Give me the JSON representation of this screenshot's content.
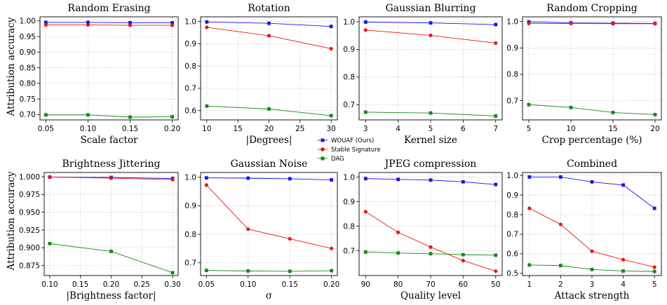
{
  "figure": {
    "shared_ylabel": "Attribution accuracy"
  },
  "legend": [
    {
      "name": "WOUAF (Ours)",
      "color": "#1515f0"
    },
    {
      "name": "Stable Signature",
      "color": "#ee1515"
    },
    {
      "name": "DAG",
      "color": "#128a12"
    }
  ],
  "chart_data": [
    {
      "type": "line",
      "title": "Random Erasing",
      "xlabel": "Scale factor",
      "x": [
        0.05,
        0.1,
        0.15,
        0.2
      ],
      "xticks": [
        0.05,
        0.1,
        0.15,
        0.2
      ],
      "xtick_labels": [
        "0.05",
        "0.10",
        "0.15",
        "0.20"
      ],
      "xlim": [
        0.043,
        0.207
      ],
      "yticks": [
        0.7,
        0.75,
        0.8,
        0.85,
        0.9,
        0.95,
        1.0
      ],
      "ytick_labels": [
        "0.70",
        "0.75",
        "0.80",
        "0.85",
        "0.90",
        "0.95",
        "1.00"
      ],
      "ylim": [
        0.683,
        1.013
      ],
      "series": [
        {
          "name": "WOUAF (Ours)",
          "values": [
            0.995,
            0.995,
            0.994,
            0.994
          ]
        },
        {
          "name": "Stable Signature",
          "values": [
            0.987,
            0.987,
            0.986,
            0.986
          ]
        },
        {
          "name": "DAG",
          "values": [
            0.699,
            0.699,
            0.692,
            0.693
          ]
        }
      ]
    },
    {
      "type": "line",
      "title": "Rotation",
      "xlabel": "|Degrees|",
      "x": [
        10,
        20,
        30
      ],
      "xticks": [
        10,
        15,
        20,
        25,
        30
      ],
      "xtick_labels": [
        "10",
        "15",
        "20",
        "25",
        "30"
      ],
      "xlim": [
        9,
        31
      ],
      "yticks": [
        0.6,
        0.7,
        0.8,
        0.9,
        1.0
      ],
      "ytick_labels": [
        "0.6",
        "0.7",
        "0.8",
        "0.9",
        "1.0"
      ],
      "ylim": [
        0.558,
        1.021
      ],
      "series": [
        {
          "name": "WOUAF (Ours)",
          "values": [
            0.998,
            0.992,
            0.978
          ]
        },
        {
          "name": "Stable Signature",
          "values": [
            0.974,
            0.936,
            0.878
          ]
        },
        {
          "name": "DAG",
          "values": [
            0.62,
            0.607,
            0.577
          ]
        }
      ]
    },
    {
      "type": "line",
      "title": "Gaussian Blurring",
      "xlabel": "Kernel size",
      "x": [
        3,
        5,
        7
      ],
      "xticks": [
        3,
        4,
        5,
        6,
        7
      ],
      "xtick_labels": [
        "3",
        "4",
        "5",
        "6",
        "7"
      ],
      "xlim": [
        2.8,
        7.2
      ],
      "yticks": [
        0.7,
        0.8,
        0.9,
        1.0
      ],
      "ytick_labels": [
        "0.7",
        "0.8",
        "0.9",
        "1.0"
      ],
      "ylim": [
        0.645,
        1.018
      ],
      "series": [
        {
          "name": "WOUAF (Ours)",
          "values": [
            0.999,
            0.996,
            0.99
          ]
        },
        {
          "name": "Stable Signature",
          "values": [
            0.97,
            0.951,
            0.923
          ]
        },
        {
          "name": "DAG",
          "values": [
            0.673,
            0.67,
            0.659
          ]
        }
      ]
    },
    {
      "type": "line",
      "title": "Random Cropping",
      "xlabel": "Crop percentage (%)",
      "x": [
        5,
        10,
        15,
        20
      ],
      "xticks": [
        5,
        10,
        15,
        20
      ],
      "xtick_labels": [
        "5",
        "10",
        "15",
        "20"
      ],
      "xlim": [
        4.25,
        20.75
      ],
      "yticks": [
        0.7,
        0.8,
        0.9,
        1.0
      ],
      "ytick_labels": [
        "0.7",
        "0.8",
        "0.9",
        "1.0"
      ],
      "ylim": [
        0.627,
        1.018
      ],
      "series": [
        {
          "name": "WOUAF (Ours)",
          "values": [
            0.999,
            0.995,
            0.994,
            0.993
          ]
        },
        {
          "name": "Stable Signature",
          "values": [
            0.993,
            0.993,
            0.992,
            0.992
          ]
        },
        {
          "name": "DAG",
          "values": [
            0.685,
            0.674,
            0.655,
            0.647
          ]
        }
      ]
    },
    {
      "type": "line",
      "title": "Brightness Jittering",
      "xlabel": "|Brightness factor|",
      "x": [
        0.1,
        0.2,
        0.3
      ],
      "xticks": [
        0.1,
        0.15,
        0.2,
        0.25,
        0.3
      ],
      "xtick_labels": [
        "0.10",
        "0.15",
        "0.20",
        "0.25",
        "0.30"
      ],
      "xlim": [
        0.091,
        0.309
      ],
      "yticks": [
        0.875,
        0.9,
        0.925,
        0.95,
        0.975,
        1.0
      ],
      "ytick_labels": [
        "0.875",
        "0.900",
        "0.925",
        "0.950",
        "0.975",
        "1.000"
      ],
      "ylim": [
        0.861,
        1.006
      ],
      "series": [
        {
          "name": "WOUAF (Ours)",
          "values": [
            0.9995,
            0.999,
            0.9975
          ]
        },
        {
          "name": "Stable Signature",
          "values": [
            0.9995,
            0.998,
            0.996
          ]
        },
        {
          "name": "DAG",
          "values": [
            0.906,
            0.895,
            0.865
          ]
        }
      ]
    },
    {
      "type": "line",
      "title": "Gaussian Noise",
      "xlabel": "σ",
      "x": [
        0.05,
        0.1,
        0.15,
        0.2
      ],
      "xticks": [
        0.05,
        0.1,
        0.15,
        0.2
      ],
      "xtick_labels": [
        "0.05",
        "0.10",
        "0.15",
        "0.20"
      ],
      "xlim": [
        0.043,
        0.207
      ],
      "yticks": [
        0.7,
        0.8,
        0.9,
        1.0
      ],
      "ytick_labels": [
        "0.7",
        "0.8",
        "0.9",
        "1.0"
      ],
      "ylim": [
        0.655,
        1.017
      ],
      "series": [
        {
          "name": "WOUAF (Ours)",
          "values": [
            0.998,
            0.997,
            0.995,
            0.991
          ]
        },
        {
          "name": "Stable Signature",
          "values": [
            0.973,
            0.818,
            0.784,
            0.75
          ]
        },
        {
          "name": "DAG",
          "values": [
            0.673,
            0.671,
            0.67,
            0.672
          ]
        }
      ]
    },
    {
      "type": "line",
      "title": "JPEG compression",
      "xlabel": "Quality level",
      "x": [
        90,
        80,
        70,
        60,
        50
      ],
      "xticks": [
        90,
        80,
        70,
        60,
        50
      ],
      "xtick_labels": [
        "90",
        "80",
        "70",
        "60",
        "50"
      ],
      "xlim": [
        92,
        48
      ],
      "yticks": [
        0.7,
        0.8,
        0.9,
        1.0
      ],
      "ytick_labels": [
        "0.7",
        "0.8",
        "0.9",
        "1.0"
      ],
      "ylim": [
        0.599,
        1.019
      ],
      "series": [
        {
          "name": "WOUAF (Ours)",
          "values": [
            0.994,
            0.991,
            0.988,
            0.981,
            0.97
          ]
        },
        {
          "name": "Stable Signature",
          "values": [
            0.859,
            0.775,
            0.715,
            0.66,
            0.617
          ]
        },
        {
          "name": "DAG",
          "values": [
            0.695,
            0.691,
            0.688,
            0.684,
            0.682
          ]
        }
      ]
    },
    {
      "type": "line",
      "title": "Combined",
      "xlabel": "Attack strength",
      "x": [
        1,
        2,
        3,
        4,
        5
      ],
      "xticks": [
        1,
        2,
        3,
        4,
        5
      ],
      "xtick_labels": [
        "1",
        "2",
        "3",
        "4",
        "5"
      ],
      "xlim": [
        0.78,
        5.22
      ],
      "yticks": [
        0.5,
        0.6,
        0.7,
        0.8,
        0.9,
        1.0
      ],
      "ytick_labels": [
        "0.5",
        "0.6",
        "0.7",
        "0.8",
        "0.9",
        "1.0"
      ],
      "ylim": [
        0.489,
        1.015
      ],
      "series": [
        {
          "name": "WOUAF (Ours)",
          "values": [
            0.992,
            0.992,
            0.967,
            0.951,
            0.832
          ]
        },
        {
          "name": "Stable Signature",
          "values": [
            0.832,
            0.75,
            0.613,
            0.57,
            0.532
          ]
        },
        {
          "name": "DAG",
          "values": [
            0.543,
            0.54,
            0.52,
            0.512,
            0.51
          ]
        }
      ]
    }
  ]
}
